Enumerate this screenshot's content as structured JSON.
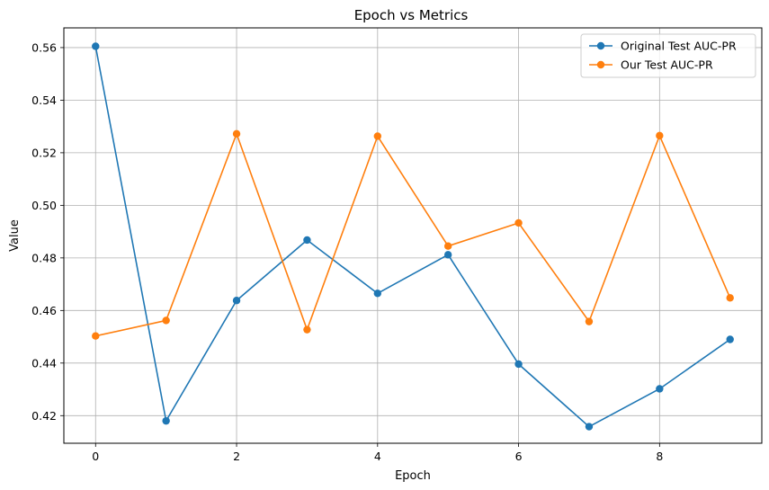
{
  "chart_data": {
    "type": "line",
    "title": "Epoch vs Metrics",
    "xlabel": "Epoch",
    "ylabel": "Value",
    "x": [
      0,
      1,
      2,
      3,
      4,
      5,
      6,
      7,
      8,
      9
    ],
    "xlim": [
      -0.45,
      9.45
    ],
    "ylim": [
      0.4095,
      0.5675
    ],
    "xticks": [
      0,
      2,
      4,
      6,
      8
    ],
    "yticks": [
      0.42,
      0.44,
      0.46,
      0.48,
      0.5,
      0.52,
      0.54,
      0.56
    ],
    "ytick_labels": [
      "0.42",
      "0.44",
      "0.46",
      "0.48",
      "0.50",
      "0.52",
      "0.54",
      "0.56"
    ],
    "grid": true,
    "legend_position": "top-right",
    "series": [
      {
        "name": "Original Test AUC-PR",
        "color": "#1f77b4",
        "values": [
          0.5605,
          0.418,
          0.4638,
          0.4868,
          0.4665,
          0.4812,
          0.4396,
          0.4158,
          0.4302,
          0.449
        ]
      },
      {
        "name": "Our Test AUC-PR",
        "color": "#ff7f0e",
        "values": [
          0.4503,
          0.4562,
          0.5272,
          0.4527,
          0.5263,
          0.4845,
          0.4933,
          0.4558,
          0.5265,
          0.4648
        ]
      }
    ]
  }
}
